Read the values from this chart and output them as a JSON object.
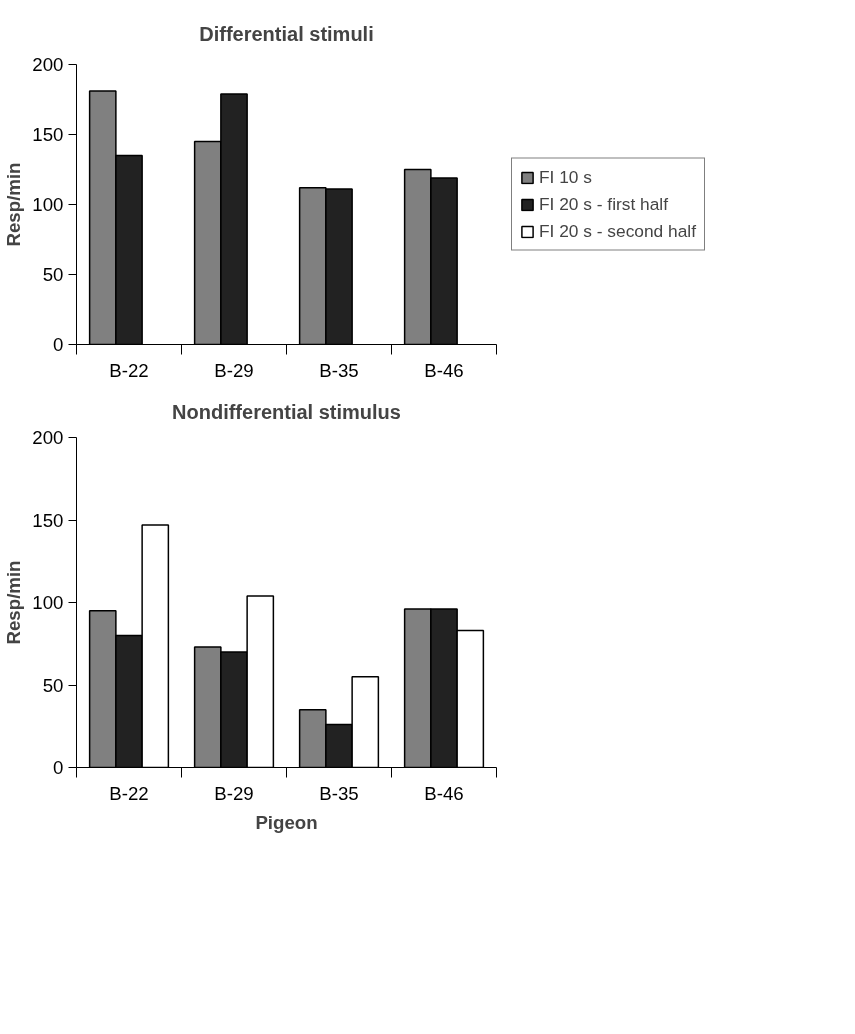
{
  "chart_data": [
    {
      "type": "bar",
      "title": "Differential stimuli",
      "ylabel": "Resp/min",
      "categories": [
        "B-22",
        "B-29",
        "B-35",
        "B-46"
      ],
      "series": [
        {
          "name": "FI 10 s",
          "color": "#808080",
          "values": [
            181,
            145,
            112,
            125
          ]
        },
        {
          "name": "FI 20 s - first half",
          "color": "#222222",
          "values": [
            135,
            179,
            111,
            119
          ]
        },
        {
          "name": "FI 20 s - second half",
          "color": "#ffffff",
          "values": [
            null,
            null,
            null,
            null
          ]
        }
      ],
      "ylim": [
        0,
        200
      ],
      "yticks": [
        0,
        50,
        100,
        150,
        200
      ],
      "grid": false,
      "legend": "right"
    },
    {
      "type": "bar",
      "title": "Nondifferential stimulus",
      "xlabel": "Pigeon",
      "ylabel": "Resp/min",
      "categories": [
        "B-22",
        "B-29",
        "B-35",
        "B-46"
      ],
      "series": [
        {
          "color": "#808080",
          "values": [
            95,
            73,
            35,
            96
          ]
        },
        {
          "color": "#222222",
          "values": [
            80,
            70,
            26,
            96
          ]
        },
        {
          "color": "#ffffff",
          "values": [
            147,
            104,
            55,
            83
          ]
        }
      ],
      "ylim": [
        0,
        200
      ],
      "yticks": [
        0,
        50,
        100,
        150,
        200
      ],
      "grid": false,
      "legend": false
    }
  ]
}
